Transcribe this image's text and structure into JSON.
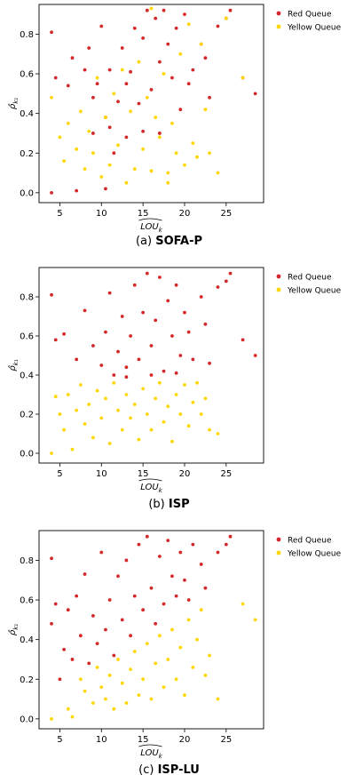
{
  "colors": {
    "red": "#d62728",
    "yellow": "#ffd700"
  },
  "legend_labels": [
    "Red Queue",
    "Yellow Queue"
  ],
  "x_axis_label": "LOU",
  "x_axis_subscript": "k",
  "y_axis_label": "ρ̂",
  "y_axis_subscript": "k₁",
  "panels": [
    {
      "prefix": "(a)",
      "name": "SOFA-P"
    },
    {
      "prefix": "(b)",
      "name": "ISP"
    },
    {
      "prefix": "(c)",
      "name": "ISP-LU"
    }
  ],
  "chart_data": [
    {
      "type": "scatter",
      "title": "",
      "caption": "(a) SOFA-P",
      "xlim": [
        2.5,
        29.5
      ],
      "ylim": [
        -0.05,
        0.95
      ],
      "xticks": [
        5,
        10,
        15,
        20,
        25
      ],
      "yticks": [
        0.0,
        0.2,
        0.4,
        0.6,
        0.8
      ],
      "legend": "outside-right-top",
      "separation": "mixed",
      "series": [
        {
          "name": "Red Queue",
          "color": "#d62728",
          "points": [
            [
              4,
              0.0
            ],
            [
              4,
              0.81
            ],
            [
              4.5,
              0.58
            ],
            [
              6,
              0.54
            ],
            [
              6.5,
              0.68
            ],
            [
              8,
              0.62
            ],
            [
              8.5,
              0.73
            ],
            [
              9,
              0.48
            ],
            [
              9.5,
              0.55
            ],
            [
              10,
              0.84
            ],
            [
              10.5,
              0.38
            ],
            [
              11,
              0.62
            ],
            [
              11.5,
              0.2
            ],
            [
              12,
              0.46
            ],
            [
              12.5,
              0.73
            ],
            [
              13,
              0.55
            ],
            [
              13.5,
              0.61
            ],
            [
              14,
              0.83
            ],
            [
              14.5,
              0.45
            ],
            [
              15,
              0.78
            ],
            [
              15.5,
              0.92
            ],
            [
              16,
              0.52
            ],
            [
              16.5,
              0.88
            ],
            [
              17,
              0.66
            ],
            [
              17.5,
              0.92
            ],
            [
              18,
              0.75
            ],
            [
              18.5,
              0.58
            ],
            [
              19,
              0.83
            ],
            [
              19.5,
              0.42
            ],
            [
              20,
              0.9
            ],
            [
              20.5,
              0.55
            ],
            [
              21,
              0.62
            ],
            [
              22,
              0.75
            ],
            [
              22.5,
              0.68
            ],
            [
              23,
              0.48
            ],
            [
              24,
              0.84
            ],
            [
              25,
              0.88
            ],
            [
              25.5,
              0.92
            ],
            [
              27,
              0.58
            ],
            [
              28.5,
              0.5
            ],
            [
              11,
              0.33
            ],
            [
              13,
              0.28
            ],
            [
              15,
              0.31
            ],
            [
              17,
              0.3
            ],
            [
              9,
              0.3
            ],
            [
              7,
              0.01
            ],
            [
              10.5,
              0.02
            ]
          ]
        },
        {
          "name": "Yellow Queue",
          "color": "#ffd700",
          "points": [
            [
              4,
              0.48
            ],
            [
              5,
              0.28
            ],
            [
              5.5,
              0.16
            ],
            [
              6,
              0.35
            ],
            [
              7,
              0.22
            ],
            [
              7.5,
              0.41
            ],
            [
              8,
              0.12
            ],
            [
              8.5,
              0.31
            ],
            [
              9,
              0.2
            ],
            [
              9.5,
              0.58
            ],
            [
              10,
              0.08
            ],
            [
              10.5,
              0.38
            ],
            [
              11,
              0.14
            ],
            [
              11.5,
              0.5
            ],
            [
              12,
              0.24
            ],
            [
              12.5,
              0.62
            ],
            [
              13,
              0.05
            ],
            [
              13.5,
              0.41
            ],
            [
              14,
              0.12
            ],
            [
              14.5,
              0.66
            ],
            [
              15,
              0.22
            ],
            [
              15.5,
              0.48
            ],
            [
              16,
              0.11
            ],
            [
              16.5,
              0.38
            ],
            [
              17,
              0.28
            ],
            [
              17.5,
              0.6
            ],
            [
              18,
              0.1
            ],
            [
              18.5,
              0.35
            ],
            [
              19,
              0.2
            ],
            [
              19.5,
              0.7
            ],
            [
              20,
              0.14
            ],
            [
              20.5,
              0.85
            ],
            [
              21,
              0.25
            ],
            [
              21.5,
              0.18
            ],
            [
              22,
              0.75
            ],
            [
              22.5,
              0.42
            ],
            [
              23,
              0.2
            ],
            [
              24,
              0.1
            ],
            [
              25,
              0.88
            ],
            [
              27,
              0.58
            ],
            [
              16,
              0.93
            ],
            [
              18,
              0.05
            ]
          ]
        }
      ]
    },
    {
      "type": "scatter",
      "title": "",
      "caption": "(b) ISP",
      "xlim": [
        2.5,
        29.5
      ],
      "ylim": [
        -0.05,
        0.95
      ],
      "xticks": [
        5,
        10,
        15,
        20,
        25
      ],
      "yticks": [
        0.0,
        0.2,
        0.4,
        0.6,
        0.8
      ],
      "legend": "outside-right-top",
      "separation": "horizontal-0.38",
      "series": [
        {
          "name": "Red Queue",
          "color": "#d62728",
          "points": [
            [
              4,
              0.81
            ],
            [
              4.5,
              0.58
            ],
            [
              5.5,
              0.61
            ],
            [
              7,
              0.48
            ],
            [
              8,
              0.73
            ],
            [
              9,
              0.55
            ],
            [
              10,
              0.45
            ],
            [
              10.5,
              0.62
            ],
            [
              11,
              0.82
            ],
            [
              11.5,
              0.4
            ],
            [
              12,
              0.52
            ],
            [
              12.5,
              0.7
            ],
            [
              13,
              0.44
            ],
            [
              13.5,
              0.6
            ],
            [
              14,
              0.86
            ],
            [
              14.5,
              0.48
            ],
            [
              15,
              0.72
            ],
            [
              15.5,
              0.92
            ],
            [
              16,
              0.55
            ],
            [
              16.5,
              0.68
            ],
            [
              17,
              0.9
            ],
            [
              17.5,
              0.42
            ],
            [
              18,
              0.78
            ],
            [
              18.5,
              0.6
            ],
            [
              19,
              0.86
            ],
            [
              19.5,
              0.5
            ],
            [
              20,
              0.72
            ],
            [
              20.5,
              0.62
            ],
            [
              21,
              0.48
            ],
            [
              22,
              0.8
            ],
            [
              22.5,
              0.66
            ],
            [
              23,
              0.46
            ],
            [
              24,
              0.85
            ],
            [
              25,
              0.88
            ],
            [
              25.5,
              0.92
            ],
            [
              27,
              0.58
            ],
            [
              28.5,
              0.5
            ],
            [
              13,
              0.39
            ],
            [
              16,
              0.4
            ],
            [
              19,
              0.41
            ]
          ]
        },
        {
          "name": "Yellow Queue",
          "color": "#ffd700",
          "points": [
            [
              4,
              0.0
            ],
            [
              4.5,
              0.29
            ],
            [
              5,
              0.2
            ],
            [
              5.5,
              0.12
            ],
            [
              6,
              0.3
            ],
            [
              6.5,
              0.02
            ],
            [
              7,
              0.22
            ],
            [
              7.5,
              0.35
            ],
            [
              8,
              0.15
            ],
            [
              8.5,
              0.25
            ],
            [
              9,
              0.08
            ],
            [
              9.5,
              0.32
            ],
            [
              10,
              0.18
            ],
            [
              10.5,
              0.28
            ],
            [
              11,
              0.05
            ],
            [
              11.5,
              0.36
            ],
            [
              12,
              0.22
            ],
            [
              12.5,
              0.12
            ],
            [
              13,
              0.3
            ],
            [
              13.5,
              0.18
            ],
            [
              14,
              0.25
            ],
            [
              14.5,
              0.07
            ],
            [
              15,
              0.33
            ],
            [
              15.5,
              0.2
            ],
            [
              16,
              0.12
            ],
            [
              16.5,
              0.28
            ],
            [
              17,
              0.36
            ],
            [
              17.5,
              0.16
            ],
            [
              18,
              0.24
            ],
            [
              18.5,
              0.06
            ],
            [
              19,
              0.3
            ],
            [
              19.5,
              0.2
            ],
            [
              20,
              0.35
            ],
            [
              20.5,
              0.14
            ],
            [
              21,
              0.26
            ],
            [
              21.5,
              0.36
            ],
            [
              22,
              0.2
            ],
            [
              22.5,
              0.28
            ],
            [
              23,
              0.12
            ],
            [
              24,
              0.1
            ]
          ]
        }
      ]
    },
    {
      "type": "scatter",
      "title": "",
      "caption": "(c) ISP-LU",
      "xlim": [
        2.5,
        29.5
      ],
      "ylim": [
        -0.05,
        0.95
      ],
      "xticks": [
        5,
        10,
        15,
        20,
        25
      ],
      "yticks": [
        0.0,
        0.2,
        0.4,
        0.6,
        0.8
      ],
      "legend": "outside-right-top",
      "separation": "diagonal",
      "series": [
        {
          "name": "Red Queue",
          "color": "#d62728",
          "points": [
            [
              4,
              0.81
            ],
            [
              4.5,
              0.58
            ],
            [
              4,
              0.48
            ],
            [
              5,
              0.2
            ],
            [
              5.5,
              0.35
            ],
            [
              6,
              0.55
            ],
            [
              6.5,
              0.3
            ],
            [
              7,
              0.62
            ],
            [
              7.5,
              0.42
            ],
            [
              8,
              0.73
            ],
            [
              8.5,
              0.28
            ],
            [
              9,
              0.52
            ],
            [
              9.5,
              0.38
            ],
            [
              10,
              0.84
            ],
            [
              10.5,
              0.45
            ],
            [
              11,
              0.6
            ],
            [
              11.5,
              0.32
            ],
            [
              12,
              0.72
            ],
            [
              12.5,
              0.5
            ],
            [
              13,
              0.8
            ],
            [
              13.5,
              0.42
            ],
            [
              14,
              0.62
            ],
            [
              14.5,
              0.88
            ],
            [
              15,
              0.55
            ],
            [
              15.5,
              0.92
            ],
            [
              16,
              0.66
            ],
            [
              16.5,
              0.48
            ],
            [
              17,
              0.82
            ],
            [
              17.5,
              0.58
            ],
            [
              18,
              0.9
            ],
            [
              18.5,
              0.72
            ],
            [
              19,
              0.62
            ],
            [
              19.5,
              0.84
            ],
            [
              20,
              0.7
            ],
            [
              20.5,
              0.6
            ],
            [
              21,
              0.88
            ],
            [
              22,
              0.78
            ],
            [
              22.5,
              0.66
            ],
            [
              24,
              0.84
            ],
            [
              25,
              0.88
            ],
            [
              25.5,
              0.92
            ]
          ]
        },
        {
          "name": "Yellow Queue",
          "color": "#ffd700",
          "points": [
            [
              4,
              0.0
            ],
            [
              6,
              0.05
            ],
            [
              6.5,
              0.01
            ],
            [
              7.5,
              0.2
            ],
            [
              8,
              0.14
            ],
            [
              9,
              0.08
            ],
            [
              9.5,
              0.26
            ],
            [
              10,
              0.16
            ],
            [
              10.5,
              0.1
            ],
            [
              11,
              0.22
            ],
            [
              11.5,
              0.05
            ],
            [
              12,
              0.3
            ],
            [
              12.5,
              0.18
            ],
            [
              13,
              0.08
            ],
            [
              13.5,
              0.25
            ],
            [
              14,
              0.34
            ],
            [
              14.5,
              0.12
            ],
            [
              15,
              0.2
            ],
            [
              15.5,
              0.38
            ],
            [
              16,
              0.1
            ],
            [
              16.5,
              0.28
            ],
            [
              17,
              0.42
            ],
            [
              17.5,
              0.16
            ],
            [
              18,
              0.3
            ],
            [
              18.5,
              0.45
            ],
            [
              19,
              0.2
            ],
            [
              19.5,
              0.36
            ],
            [
              20,
              0.12
            ],
            [
              20.5,
              0.5
            ],
            [
              21,
              0.26
            ],
            [
              21.5,
              0.4
            ],
            [
              22,
              0.55
            ],
            [
              22.5,
              0.22
            ],
            [
              23,
              0.32
            ],
            [
              24,
              0.1
            ],
            [
              27,
              0.58
            ],
            [
              28.5,
              0.5
            ]
          ]
        }
      ]
    }
  ]
}
